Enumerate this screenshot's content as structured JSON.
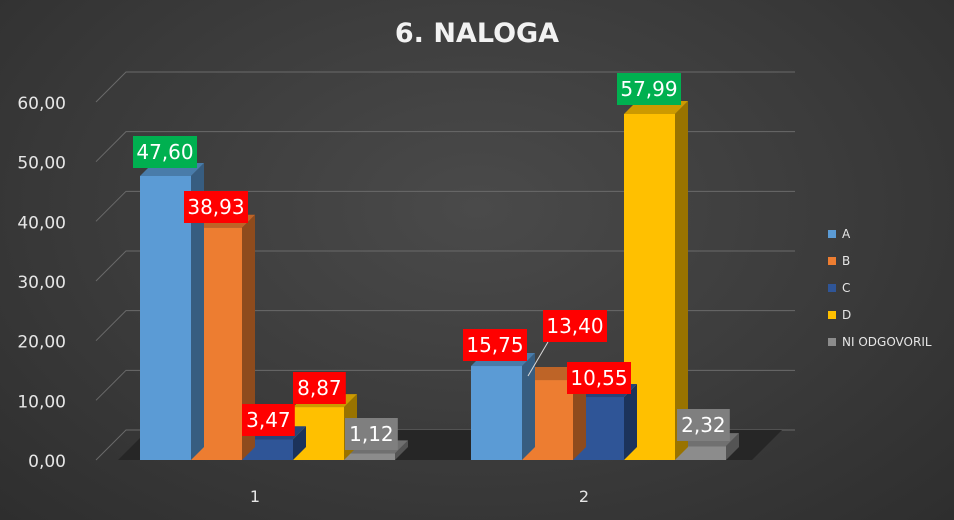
{
  "chart_data": {
    "type": "bar",
    "title": "6. NALOGA",
    "categories": [
      "1",
      "2"
    ],
    "ylim": [
      0,
      60
    ],
    "yticks": [
      "0,00",
      "10,00",
      "20,00",
      "30,00",
      "40,00",
      "50,00",
      "60,00"
    ],
    "grid": true,
    "legend_position": "right",
    "series": [
      {
        "name": "A",
        "color": "#5b9bd5",
        "values": [
          47.6,
          15.75
        ],
        "labels": [
          "47,60",
          "15,75"
        ],
        "label_colors": [
          "#00b050",
          "#ff0000"
        ]
      },
      {
        "name": "B",
        "color": "#ed7d31",
        "values": [
          38.93,
          13.4
        ],
        "labels": [
          "38,93",
          "13,40"
        ],
        "label_colors": [
          "#ff0000",
          "#ff0000"
        ]
      },
      {
        "name": "C",
        "color": "#2f5597",
        "values": [
          3.47,
          10.55
        ],
        "labels": [
          "3,47",
          "10,55"
        ],
        "label_colors": [
          "#ff0000",
          "#ff0000"
        ]
      },
      {
        "name": "D",
        "color": "#ffc000",
        "values": [
          8.87,
          57.99
        ],
        "labels": [
          "8,87",
          "57,99"
        ],
        "label_colors": [
          "#ff0000",
          "#00b050"
        ]
      },
      {
        "name": "NI ODGOVORIL",
        "color": "#8c8c8c",
        "values": [
          1.12,
          2.32
        ],
        "labels": [
          "1,12",
          "2,32"
        ],
        "label_colors": [
          "#7f7f7f",
          "#7f7f7f"
        ]
      }
    ]
  }
}
